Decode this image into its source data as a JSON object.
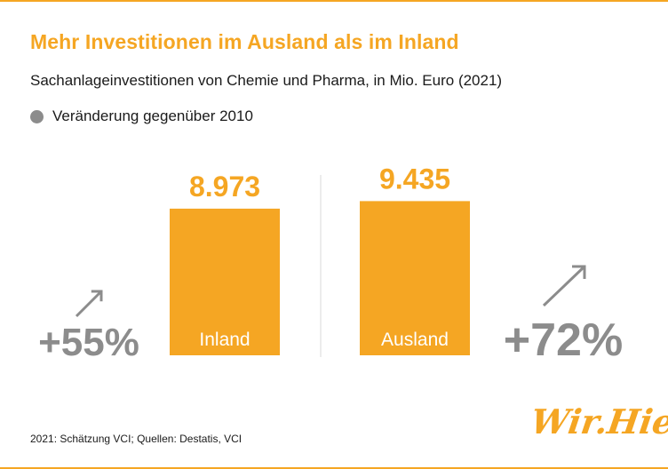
{
  "header": {
    "title": "Mehr Investitionen im Ausland als im Inland",
    "subtitle": "Sachanlageinvestitionen von Chemie und Pharma, in Mio. Euro (2021)"
  },
  "legend": {
    "label": "Veränderung gegenüber 2010",
    "color": "#8c8c8c"
  },
  "chart_data": {
    "type": "bar",
    "title": "Mehr Investitionen im Ausland als im Inland",
    "subtitle": "Sachanlageinvestitionen von Chemie und Pharma, in Mio. Euro (2021)",
    "categories": [
      "Inland",
      "Ausland"
    ],
    "values": [
      8973,
      9435
    ],
    "value_labels": [
      "8.973",
      "9.435"
    ],
    "changes": [
      "+55%",
      "+72%"
    ],
    "change_legend": "Veränderung gegenüber 2010",
    "bar_color": "#f5a623",
    "change_color": "#8c8c8c",
    "ylim": [
      0,
      10000
    ],
    "grid": false
  },
  "footer": {
    "source": "2021: Schätzung VCI; Quellen: Destatis, VCI",
    "logo": "Wir.Hier."
  }
}
